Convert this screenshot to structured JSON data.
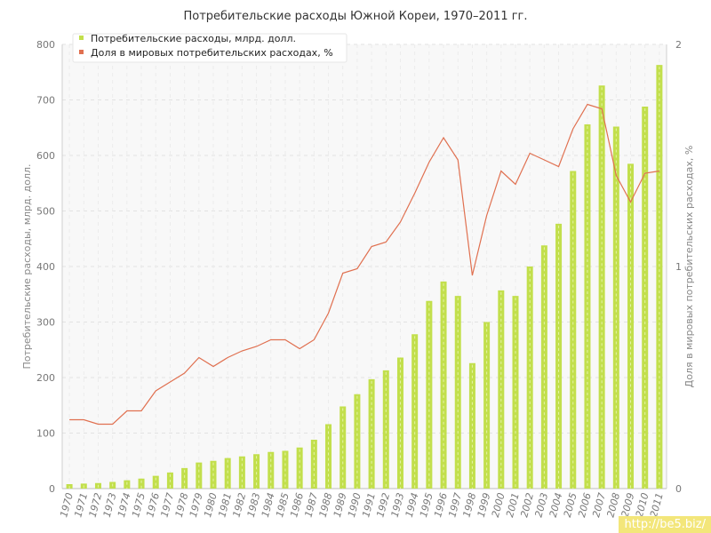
{
  "chart_data": {
    "type": "bar+line",
    "title": "Потребительские расходы Южной Кореи, 1970–2011 гг.",
    "ylabel_left": "Потребительские расходы, млрд. долл.",
    "ylabel_right": "Доля в мировых потребительских расходах, %",
    "ylim_left": [
      0,
      800
    ],
    "ylim_right": [
      0,
      2
    ],
    "yticks_left": [
      "0",
      "100",
      "200",
      "300",
      "400",
      "500",
      "600",
      "700",
      "800"
    ],
    "yticks_right": [
      "0",
      "1",
      "2"
    ],
    "legend_position": "top-left",
    "grid": true,
    "categories": [
      "1970",
      "1971",
      "1972",
      "1973",
      "1974",
      "1975",
      "1976",
      "1977",
      "1978",
      "1979",
      "1980",
      "1981",
      "1982",
      "1983",
      "1984",
      "1985",
      "1986",
      "1987",
      "1988",
      "1989",
      "1990",
      "1991",
      "1992",
      "1993",
      "1994",
      "1995",
      "1996",
      "1997",
      "1998",
      "1999",
      "2000",
      "2001",
      "2002",
      "2003",
      "2004",
      "2005",
      "2006",
      "2007",
      "2008",
      "2009",
      "2010",
      "2011"
    ],
    "series": [
      {
        "name": "Потребительские расходы, млрд. долл.",
        "type": "bar",
        "axis": "left",
        "color": "#c2df4c",
        "values": [
          8,
          9,
          10,
          12,
          15,
          18,
          23,
          29,
          37,
          47,
          50,
          55,
          58,
          62,
          66,
          68,
          74,
          88,
          116,
          148,
          170,
          197,
          213,
          236,
          278,
          338,
          373,
          347,
          226,
          300,
          357,
          347,
          400,
          438,
          477,
          572,
          656,
          726,
          652,
          585,
          688,
          763
        ]
      },
      {
        "name": "Доля в мировых потребительских расходах, %",
        "type": "line",
        "axis": "right",
        "color": "#e07050",
        "values": [
          0.31,
          0.31,
          0.29,
          0.29,
          0.35,
          0.35,
          0.44,
          0.48,
          0.52,
          0.59,
          0.55,
          0.59,
          0.62,
          0.64,
          0.67,
          0.67,
          0.63,
          0.67,
          0.79,
          0.97,
          0.99,
          1.09,
          1.11,
          1.2,
          1.33,
          1.47,
          1.58,
          1.48,
          0.96,
          1.23,
          1.43,
          1.37,
          1.51,
          1.48,
          1.45,
          1.62,
          1.73,
          1.71,
          1.41,
          1.29,
          1.42,
          1.43
        ]
      }
    ]
  },
  "watermark": "http://be5.biz/"
}
